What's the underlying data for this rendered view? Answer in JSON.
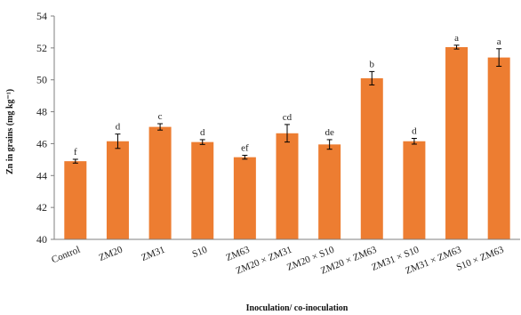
{
  "chart_data": {
    "type": "bar",
    "title": "",
    "ylabel": "Zn in grains (mg kg⁻¹)",
    "xlabel": "Inoculation/ co-inoculation",
    "ylim": [
      40,
      54
    ],
    "yticks": [
      40,
      42,
      44,
      46,
      48,
      50,
      52,
      54
    ],
    "grid": false,
    "bar_color": "#ED7D31",
    "categories": [
      "Control",
      "ZM20",
      "ZM31",
      "S10",
      "ZM63",
      "ZM20 × ZM31",
      "ZM20 × S10",
      "ZM20 × ZM63",
      "ZM31 × S10",
      "ZM31 × ZM63",
      "S10 × ZM63"
    ],
    "values": [
      44.9,
      46.15,
      47.05,
      46.1,
      45.15,
      46.65,
      45.95,
      50.1,
      46.15,
      52.05,
      51.4
    ],
    "errors": [
      0.12,
      0.45,
      0.2,
      0.15,
      0.12,
      0.55,
      0.3,
      0.42,
      0.18,
      0.12,
      0.55
    ],
    "letters": [
      "f",
      "d",
      "c",
      "d",
      "ef",
      "cd",
      "de",
      "b",
      "d",
      "a",
      "a"
    ]
  }
}
